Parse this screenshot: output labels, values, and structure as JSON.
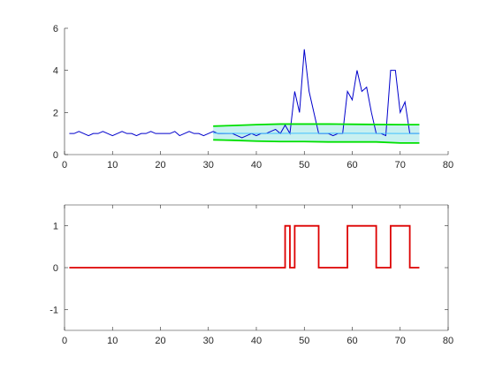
{
  "chart_data": [
    {
      "type": "line",
      "title": "",
      "xlabel": "",
      "ylabel": "",
      "xlim": [
        0,
        80
      ],
      "ylim": [
        0,
        6
      ],
      "xticks": [
        0,
        10,
        20,
        30,
        40,
        50,
        60,
        70,
        80
      ],
      "yticks": [
        0,
        2,
        4,
        6
      ],
      "grid": false,
      "box": false,
      "series": [
        {
          "color": "#0000cc",
          "x": [
            1,
            2,
            3,
            4,
            5,
            6,
            7,
            8,
            9,
            10,
            11,
            12,
            13,
            14,
            15,
            16,
            17,
            18,
            19,
            20,
            21,
            22,
            23,
            24,
            25,
            26,
            27,
            28,
            29,
            30,
            31,
            32,
            33,
            34,
            35,
            36,
            37,
            38,
            39,
            40,
            41,
            42,
            43,
            44,
            45,
            46,
            47,
            48,
            49,
            50,
            51,
            52,
            53,
            54,
            55,
            56,
            57,
            58,
            59,
            60,
            61,
            62,
            63,
            64,
            65,
            66,
            67,
            68,
            69,
            70,
            71,
            72,
            73,
            74
          ],
          "y": [
            1.0,
            1.0,
            1.1,
            1.0,
            0.9,
            1.0,
            1.0,
            1.1,
            1.0,
            0.9,
            1.0,
            1.1,
            1.0,
            1.0,
            0.9,
            1.0,
            1.0,
            1.1,
            1.0,
            1.0,
            1.0,
            1.0,
            1.1,
            0.9,
            1.0,
            1.1,
            1.0,
            1.0,
            0.9,
            1.0,
            1.1,
            1.0,
            1.0,
            1.0,
            1.0,
            0.9,
            0.8,
            0.9,
            1.0,
            0.9,
            1.0,
            1.0,
            1.1,
            1.2,
            1.0,
            1.4,
            1.0,
            3.0,
            2.0,
            5.0,
            3.0,
            2.0,
            1.0,
            1.0,
            1.0,
            0.9,
            1.0,
            1.0,
            3.0,
            2.6,
            4.0,
            3.0,
            3.2,
            2.0,
            1.0,
            1.0,
            0.9,
            4.0,
            4.0,
            2.0,
            2.5,
            1.0,
            1.0,
            1.0
          ]
        },
        {
          "color": "#00e000",
          "x": [
            31,
            35,
            40,
            45,
            50,
            55,
            60,
            65,
            70,
            74
          ],
          "y": [
            1.35,
            1.38,
            1.42,
            1.45,
            1.45,
            1.45,
            1.44,
            1.43,
            1.42,
            1.42
          ]
        },
        {
          "color": "#00e000",
          "x": [
            31,
            35,
            40,
            45,
            50,
            55,
            60,
            65,
            70,
            74
          ],
          "y": [
            0.7,
            0.68,
            0.64,
            0.62,
            0.62,
            0.6,
            0.6,
            0.6,
            0.55,
            0.55
          ]
        },
        {
          "color": "#40c0ff",
          "x": [
            31,
            40,
            50,
            60,
            70,
            74
          ],
          "y": [
            1.02,
            1.0,
            1.01,
            1.01,
            1.0,
            1.0
          ]
        }
      ],
      "band": {
        "color": "#c8f0f0",
        "x": [
          31,
          35,
          40,
          45,
          50,
          55,
          60,
          65,
          70,
          74
        ],
        "upper": [
          1.35,
          1.38,
          1.42,
          1.45,
          1.45,
          1.45,
          1.44,
          1.43,
          1.42,
          1.42
        ],
        "lower": [
          0.7,
          0.68,
          0.64,
          0.62,
          0.62,
          0.6,
          0.6,
          0.6,
          0.55,
          0.55
        ]
      }
    },
    {
      "type": "line",
      "title": "",
      "xlabel": "",
      "ylabel": "",
      "xlim": [
        0,
        80
      ],
      "ylim": [
        -1.5,
        1.5
      ],
      "xticks": [
        0,
        10,
        20,
        30,
        40,
        50,
        60,
        70,
        80
      ],
      "yticks": [
        -1,
        0,
        1
      ],
      "grid": false,
      "box": true,
      "series": [
        {
          "color": "#dd0000",
          "step": true,
          "x": [
            1,
            46,
            47,
            48,
            53,
            59,
            65,
            68,
            72,
            74
          ],
          "y": [
            0,
            1,
            0,
            1,
            0,
            1,
            0,
            1,
            0,
            0
          ]
        }
      ]
    }
  ]
}
